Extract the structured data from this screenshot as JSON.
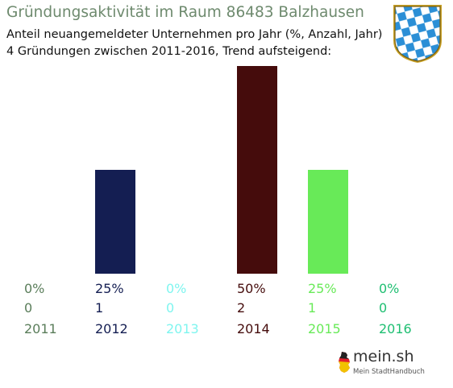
{
  "header": {
    "title": "Gründungsaktivität im Raum 86483 Balzhausen",
    "subtitle_line1": "Anteil neuangemeldeter Unternehmen pro Jahr (%, Anzahl, Jahr)",
    "subtitle_line2": "4 Gründungen zwischen 2011-2016, Trend aufsteigend:"
  },
  "crest": {
    "icon": "bavaria-coat-of-arms-icon",
    "colors": [
      "#2b8fd6",
      "#ffffff",
      "#c9a227"
    ]
  },
  "branding": {
    "name": "mein.sh",
    "tagline": "Mein StadtHandbuch",
    "icon": "germany-map-icon"
  },
  "chart_data": {
    "type": "bar",
    "title": "",
    "categories": [
      "2011",
      "2012",
      "2013",
      "2014",
      "2015",
      "2016"
    ],
    "percent_labels": [
      "0%",
      "25%",
      "0%",
      "50%",
      "25%",
      "0%"
    ],
    "count_labels": [
      "0",
      "1",
      "0",
      "2",
      "1",
      "0"
    ],
    "values": [
      0,
      25,
      0,
      50,
      25,
      0
    ],
    "counts": [
      0,
      1,
      0,
      2,
      1,
      0
    ],
    "colors": [
      "#5a7d5a",
      "#141e52",
      "#7ff5ef",
      "#450c0c",
      "#68ea58",
      "#1fbf72"
    ],
    "ylim": [
      0,
      50
    ],
    "grid": false,
    "legend": "none"
  }
}
